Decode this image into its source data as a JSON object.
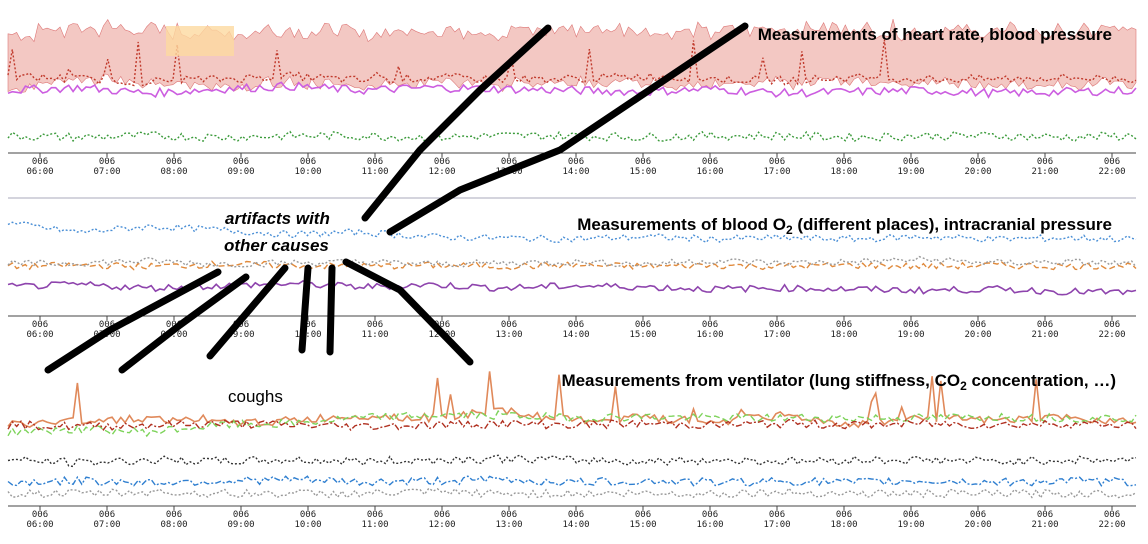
{
  "chart_data": [
    {
      "type": "line",
      "title": "Measurements of heart rate, blood pressure",
      "x_ticks": [
        {
          "day": "006",
          "time": "06:00"
        },
        {
          "day": "006",
          "time": "07:00"
        },
        {
          "day": "006",
          "time": "08:00"
        },
        {
          "day": "006",
          "time": "09:00"
        },
        {
          "day": "006",
          "time": "10:00"
        },
        {
          "day": "006",
          "time": "11:00"
        },
        {
          "day": "006",
          "time": "12:00"
        },
        {
          "day": "006",
          "time": "13:00"
        },
        {
          "day": "006",
          "time": "14:00"
        },
        {
          "day": "006",
          "time": "15:00"
        },
        {
          "day": "006",
          "time": "16:00"
        },
        {
          "day": "006",
          "time": "17:00"
        },
        {
          "day": "006",
          "time": "18:00"
        },
        {
          "day": "006",
          "time": "19:00"
        },
        {
          "day": "006",
          "time": "20:00"
        },
        {
          "day": "006",
          "time": "21:00"
        },
        {
          "day": "006",
          "time": "22:00"
        }
      ],
      "xlim_hours": [
        6,
        22.4
      ],
      "series": [
        {
          "color": "#e99a92",
          "style": "band",
          "values": [
            0.55,
            0.62,
            0.6,
            0.58,
            0.6,
            0.57,
            0.6,
            0.59,
            0.62,
            0.6,
            0.58,
            0.6,
            0.61,
            0.59,
            0.6,
            0.58,
            0.6
          ]
        },
        {
          "color": "#c0392b",
          "style": "dotted",
          "values": [
            0.52,
            0.5,
            0.48,
            0.5,
            0.52,
            0.49,
            0.51,
            0.5,
            0.5,
            0.52,
            0.5,
            0.49,
            0.51,
            0.5,
            0.5,
            0.51,
            0.5
          ]
        },
        {
          "color": "#cc5ee0",
          "style": "solid",
          "values": [
            0.42,
            0.44,
            0.4,
            0.43,
            0.45,
            0.42,
            0.44,
            0.43,
            0.42,
            0.41,
            0.43,
            0.4,
            0.41,
            0.42,
            0.4,
            0.41,
            0.42
          ]
        },
        {
          "color": "#3a9a3a",
          "style": "dotted",
          "values": [
            0.1,
            0.09,
            0.1,
            0.09,
            0.1,
            0.1,
            0.09,
            0.1,
            0.1,
            0.09,
            0.1,
            0.1,
            0.09,
            0.1,
            0.1,
            0.09,
            0.1
          ]
        }
      ]
    },
    {
      "type": "line",
      "title": "Measurements of blood O",
      "title_sub": "2",
      "title_rest": " (different places), intracranial pressure",
      "x_ticks": [
        {
          "day": "006",
          "time": "06:00"
        },
        {
          "day": "006",
          "time": "07:00"
        },
        {
          "day": "006",
          "time": "08:00"
        },
        {
          "day": "006",
          "time": "09:00"
        },
        {
          "day": "006",
          "time": "10:00"
        },
        {
          "day": "006",
          "time": "11:00"
        },
        {
          "day": "006",
          "time": "12:00"
        },
        {
          "day": "006",
          "time": "13:00"
        },
        {
          "day": "006",
          "time": "14:00"
        },
        {
          "day": "006",
          "time": "15:00"
        },
        {
          "day": "006",
          "time": "16:00"
        },
        {
          "day": "006",
          "time": "17:00"
        },
        {
          "day": "006",
          "time": "18:00"
        },
        {
          "day": "006",
          "time": "19:00"
        },
        {
          "day": "006",
          "time": "20:00"
        },
        {
          "day": "006",
          "time": "21:00"
        },
        {
          "day": "006",
          "time": "22:00"
        }
      ],
      "xlim_hours": [
        6,
        22.4
      ],
      "series": [
        {
          "color": "#4a8fd6",
          "style": "dotted",
          "values": [
            0.78,
            0.7,
            0.75,
            0.72,
            0.68,
            0.7,
            0.66,
            0.65,
            0.64,
            0.66,
            0.64,
            0.65,
            0.64,
            0.66,
            0.64,
            0.65,
            0.64
          ]
        },
        {
          "color": "#e08a3c",
          "style": "dashed",
          "values": [
            0.4,
            0.41,
            0.4,
            0.42,
            0.41,
            0.4,
            0.41,
            0.4,
            0.41,
            0.4,
            0.41,
            0.4,
            0.41,
            0.4,
            0.41,
            0.4,
            0.41
          ]
        },
        {
          "color": "#9a9a9a",
          "style": "dotted",
          "values": [
            0.42,
            0.43,
            0.45,
            0.42,
            0.43,
            0.44,
            0.42,
            0.43,
            0.44,
            0.42,
            0.45,
            0.43,
            0.44,
            0.46,
            0.43,
            0.44,
            0.42
          ]
        },
        {
          "color": "#8e44ad",
          "style": "solid",
          "values": [
            0.22,
            0.24,
            0.21,
            0.23,
            0.25,
            0.22,
            0.24,
            0.21,
            0.23,
            0.22,
            0.2,
            0.21,
            0.2,
            0.19,
            0.2,
            0.18,
            0.17
          ]
        }
      ]
    },
    {
      "type": "line",
      "title": "Measurements from ventilator (lung stiffness, CO",
      "title_sub": "2",
      "title_rest": " concentration, …)",
      "x_ticks": [
        {
          "day": "006",
          "time": "06:00"
        },
        {
          "day": "006",
          "time": "07:00"
        },
        {
          "day": "006",
          "time": "08:00"
        },
        {
          "day": "006",
          "time": "09:00"
        },
        {
          "day": "006",
          "time": "10:00"
        },
        {
          "day": "006",
          "time": "11:00"
        },
        {
          "day": "006",
          "time": "12:00"
        },
        {
          "day": "006",
          "time": "13:00"
        },
        {
          "day": "006",
          "time": "14:00"
        },
        {
          "day": "006",
          "time": "15:00"
        },
        {
          "day": "006",
          "time": "16:00"
        },
        {
          "day": "006",
          "time": "17:00"
        },
        {
          "day": "006",
          "time": "18:00"
        },
        {
          "day": "006",
          "time": "19:00"
        },
        {
          "day": "006",
          "time": "20:00"
        },
        {
          "day": "006",
          "time": "21:00"
        },
        {
          "day": "006",
          "time": "22:00"
        }
      ],
      "xlim_hours": [
        6,
        22.4
      ],
      "series": [
        {
          "color": "#e0895a",
          "style": "solid",
          "values": [
            0.55,
            0.58,
            0.6,
            0.56,
            0.58,
            0.62,
            0.6,
            0.65,
            0.58,
            0.6,
            0.57,
            0.62,
            0.55,
            0.6,
            0.58,
            0.6,
            0.58
          ]
        },
        {
          "color": "#7dd35a",
          "style": "dashed",
          "values": [
            0.5,
            0.52,
            0.5,
            0.55,
            0.56,
            0.6,
            0.62,
            0.62,
            0.6,
            0.61,
            0.6,
            0.6,
            0.6,
            0.6,
            0.61,
            0.6,
            0.6
          ]
        },
        {
          "color": "#b03020",
          "style": "dashdot",
          "values": [
            0.55,
            0.54,
            0.55,
            0.56,
            0.55,
            0.54,
            0.55,
            0.56,
            0.55,
            0.56,
            0.55,
            0.56,
            0.55,
            0.56,
            0.55,
            0.56,
            0.55
          ]
        },
        {
          "color": "#333333",
          "style": "dotted",
          "values": [
            0.3,
            0.28,
            0.3,
            0.29,
            0.3,
            0.29,
            0.3,
            0.31,
            0.3,
            0.29,
            0.3,
            0.29,
            0.3,
            0.3,
            0.29,
            0.3,
            0.3
          ]
        },
        {
          "color": "#2f7fd0",
          "style": "dashdot",
          "values": [
            0.14,
            0.15,
            0.14,
            0.15,
            0.16,
            0.14,
            0.15,
            0.16,
            0.14,
            0.15,
            0.14,
            0.15,
            0.14,
            0.15,
            0.14,
            0.15,
            0.14
          ]
        },
        {
          "color": "#999999",
          "style": "dotted",
          "values": [
            0.06,
            0.06,
            0.07,
            0.06,
            0.06,
            0.06,
            0.07,
            0.06,
            0.06,
            0.06,
            0.06,
            0.07,
            0.06,
            0.06,
            0.06,
            0.06,
            0.06
          ]
        }
      ]
    }
  ],
  "annotations": {
    "artifacts_line1": "artifacts with",
    "artifacts_line2": "other causes",
    "coughs": "coughs"
  }
}
